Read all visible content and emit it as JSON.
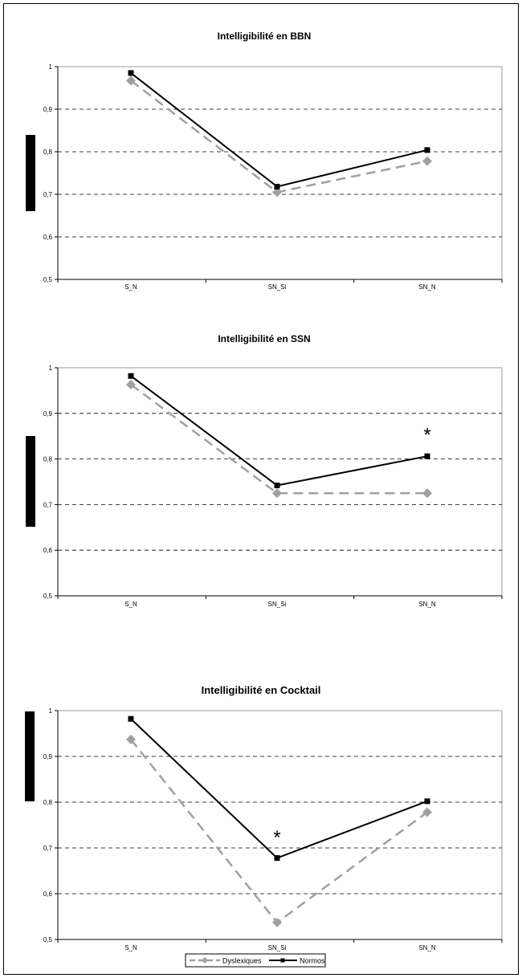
{
  "legend": {
    "items": [
      {
        "label": "Dyslexiques",
        "color": "#a0a0a0",
        "style": "dashed",
        "marker": "diamond"
      },
      {
        "label": "Normos",
        "color": "#000000",
        "style": "solid",
        "marker": "square"
      }
    ]
  },
  "colors": {
    "dyslexiques": "#a0a0a0",
    "normos": "#000000",
    "grid": "#000000"
  },
  "chart_data": [
    {
      "type": "line",
      "title": "Intelligibilité en BBN",
      "categories": [
        "S_N",
        "SN_Si",
        "SN_N"
      ],
      "ylim": [
        0.5,
        1
      ],
      "yticks": [
        "0,5",
        "0,6",
        "0,7",
        "0,8",
        "0,9",
        "1"
      ],
      "grid": true,
      "series": [
        {
          "name": "Dyslexiques",
          "values": [
            0.967,
            0.705,
            0.778
          ]
        },
        {
          "name": "Normos",
          "values": [
            0.985,
            0.718,
            0.804
          ]
        }
      ],
      "annotations": []
    },
    {
      "type": "line",
      "title": "Intelligibilité en SSN",
      "categories": [
        "S_N",
        "SN_Si",
        "SN_N"
      ],
      "ylim": [
        0.5,
        1
      ],
      "yticks": [
        "0,5",
        "0,6",
        "0,7",
        "0,8",
        "0,9",
        "1"
      ],
      "grid": true,
      "series": [
        {
          "name": "Dyslexiques",
          "values": [
            0.963,
            0.725,
            0.725
          ]
        },
        {
          "name": "Normos",
          "values": [
            0.982,
            0.742,
            0.806
          ]
        }
      ],
      "annotations": [
        {
          "text": "*",
          "category": "SN_N",
          "y": 0.855
        }
      ]
    },
    {
      "type": "line",
      "title": "Intelligibilité en Cocktail",
      "categories": [
        "S_N",
        "SN_Si",
        "SN_N"
      ],
      "ylim": [
        0.5,
        1
      ],
      "yticks": [
        "0,5",
        "0,6",
        "0,7",
        "0,8",
        "0,9",
        "1"
      ],
      "grid": true,
      "series": [
        {
          "name": "Dyslexiques",
          "values": [
            0.937,
            0.537,
            0.778
          ]
        },
        {
          "name": "Normos",
          "values": [
            0.982,
            0.678,
            0.802
          ]
        }
      ],
      "annotations": [
        {
          "text": "*",
          "category": "SN_Si",
          "y": 0.725
        }
      ]
    }
  ]
}
